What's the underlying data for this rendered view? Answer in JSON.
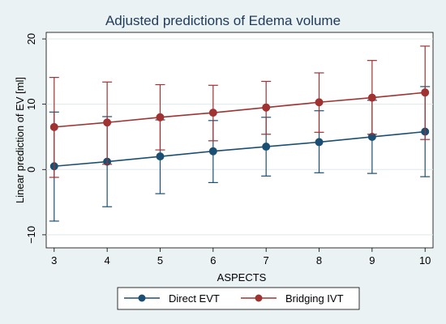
{
  "chart_data": {
    "type": "line",
    "title": "Adjusted predictions of Edema volume",
    "xlabel": "ASPECTS",
    "ylabel": "Linear prediction of EV [ml]",
    "x": [
      3,
      4,
      5,
      6,
      7,
      8,
      9,
      10
    ],
    "xlim": [
      2.85,
      10.15
    ],
    "ylim": [
      -12,
      21
    ],
    "yticks": [
      -10,
      0,
      10,
      20
    ],
    "ytick_labels": [
      "−10",
      "0",
      "10",
      "20"
    ],
    "grid": true,
    "legend_position": "bottom",
    "series": [
      {
        "name": "Direct EVT",
        "color": "#1b4f72",
        "values": [
          0.5,
          1.2,
          2.0,
          2.8,
          3.5,
          4.2,
          5.0,
          5.8
        ],
        "lower": [
          -7.9,
          -5.7,
          -3.7,
          -2.0,
          -1.0,
          -0.5,
          -0.6,
          -1.1
        ],
        "upper": [
          8.8,
          8.1,
          7.6,
          7.5,
          8.0,
          9.0,
          10.6,
          12.7
        ]
      },
      {
        "name": "Bridging IVT",
        "color": "#a03232",
        "values": [
          6.5,
          7.2,
          8.0,
          8.7,
          9.5,
          10.3,
          11.0,
          11.8
        ],
        "lower": [
          -1.2,
          0.8,
          3.0,
          4.4,
          5.4,
          5.7,
          5.4,
          4.6
        ],
        "upper": [
          14.1,
          13.4,
          13.0,
          12.9,
          13.5,
          14.8,
          16.7,
          18.9
        ]
      }
    ]
  }
}
